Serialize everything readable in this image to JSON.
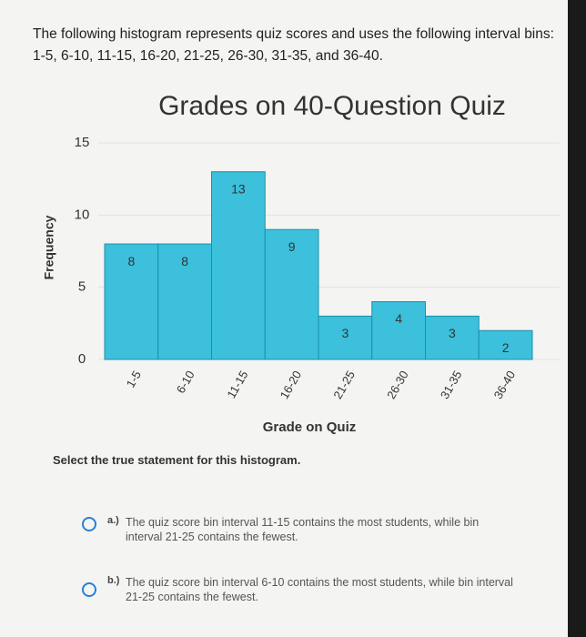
{
  "chart_data": {
    "type": "bar",
    "title": "Grades on 40-Question Quiz",
    "x_label": "Grade on Quiz",
    "y_label": "Frequency",
    "categories": [
      "1-5",
      "6-10",
      "11-15",
      "16-20",
      "21-25",
      "26-30",
      "31-35",
      "36-40"
    ],
    "values": [
      8,
      8,
      13,
      9,
      3,
      4,
      3,
      2
    ],
    "color": "#3cc0dc",
    "ylim": [
      0,
      15
    ],
    "yticks": [
      0,
      5,
      10,
      15
    ],
    "grid": true
  },
  "question": {
    "intro": "The following histogram represents quiz scores and uses the following interval bins: 1-5, 6-10, 11-15, 16-20, 21-25, 26-30, 31-35, and 36-40.",
    "prompt": "Select the true statement for this histogram.",
    "options": [
      {
        "label": "a.)",
        "text": "The quiz score bin interval 11-15 contains the most students, while bin interval 21-25 contains the fewest."
      },
      {
        "label": "b.)",
        "text": "The quiz score bin interval 6-10 contains the most students, while bin interval 21-25 contains the fewest."
      }
    ]
  }
}
